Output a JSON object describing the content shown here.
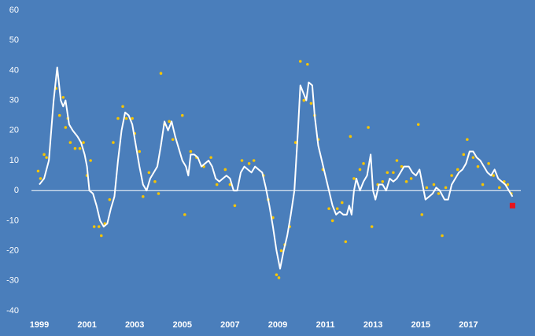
{
  "chart_data": {
    "type": "line",
    "xlim": [
      1998.67,
      2019.2
    ],
    "xticks": [
      1999,
      2001,
      2003,
      2005,
      2007,
      2009,
      2011,
      2013,
      2015,
      2017
    ],
    "ylim": [
      -40,
      60
    ],
    "yticks": [
      -40,
      -30,
      -20,
      -10,
      0,
      10,
      20,
      30,
      40,
      50,
      60
    ],
    "grid": false,
    "zero_line": true,
    "background": "#4a7ebb",
    "series": [
      {
        "type": "line",
        "color": "#ffffff",
        "x": [
          1999.0,
          1999.2,
          1999.4,
          1999.6,
          1999.75,
          1999.9,
          2000.0,
          2000.1,
          2000.25,
          2000.4,
          2000.6,
          2000.75,
          2000.9,
          2001.0,
          2001.1,
          2001.25,
          2001.4,
          2001.55,
          2001.7,
          2001.85,
          2002.0,
          2002.15,
          2002.3,
          2002.45,
          2002.6,
          2002.75,
          2002.9,
          2003.05,
          2003.2,
          2003.35,
          2003.5,
          2003.65,
          2003.8,
          2003.95,
          2004.1,
          2004.25,
          2004.4,
          2004.55,
          2004.7,
          2004.85,
          2005.0,
          2005.15,
          2005.25,
          2005.35,
          2005.5,
          2005.65,
          2005.8,
          2005.95,
          2006.1,
          2006.25,
          2006.4,
          2006.55,
          2006.7,
          2006.85,
          2007.0,
          2007.15,
          2007.3,
          2007.45,
          2007.6,
          2007.75,
          2007.9,
          2008.05,
          2008.2,
          2008.35,
          2008.5,
          2008.65,
          2008.8,
          2008.95,
          2009.1,
          2009.25,
          2009.4,
          2009.55,
          2009.7,
          2009.85,
          2009.95,
          2010.05,
          2010.2,
          2010.3,
          2010.45,
          2010.55,
          2010.7,
          2010.85,
          2011.0,
          2011.15,
          2011.3,
          2011.45,
          2011.6,
          2011.75,
          2011.9,
          2012.0,
          2012.1,
          2012.2,
          2012.3,
          2012.45,
          2012.6,
          2012.75,
          2012.9,
          2013.0,
          2013.1,
          2013.25,
          2013.4,
          2013.55,
          2013.7,
          2013.85,
          2014.0,
          2014.15,
          2014.3,
          2014.5,
          2014.65,
          2014.8,
          2014.95,
          2015.05,
          2015.2,
          2015.35,
          2015.5,
          2015.65,
          2015.8,
          2016.0,
          2016.15,
          2016.3,
          2016.45,
          2016.6,
          2016.75,
          2016.9,
          2017.05,
          2017.2,
          2017.35,
          2017.5,
          2017.65,
          2017.8,
          2017.95,
          2018.1,
          2018.25,
          2018.4,
          2018.55,
          2018.7,
          2018.85
        ],
        "values": [
          2,
          4,
          10,
          30,
          41,
          30,
          28,
          30,
          22,
          20,
          18,
          16,
          12,
          8,
          0,
          -1,
          -5,
          -10,
          -12,
          -11,
          -6,
          -2,
          10,
          20,
          26,
          25,
          22,
          15,
          8,
          2,
          0,
          4,
          6,
          8,
          15,
          23,
          20,
          23,
          18,
          14,
          10,
          8,
          5,
          12,
          12,
          11,
          8,
          9,
          10,
          8,
          4,
          3,
          4,
          5,
          4,
          0,
          0,
          6,
          8,
          7,
          6,
          8,
          7,
          6,
          1,
          -5,
          -12,
          -20,
          -26,
          -20,
          -15,
          -8,
          0,
          20,
          35,
          33,
          30,
          36,
          35,
          25,
          15,
          10,
          5,
          0,
          -5,
          -8,
          -7,
          -8,
          -8,
          -5,
          -8,
          0,
          4,
          0,
          3,
          5,
          12,
          0,
          -3,
          2,
          2,
          0,
          4,
          3,
          4,
          6,
          8,
          8,
          6,
          5,
          7,
          3,
          -3,
          -2,
          -1,
          1,
          0,
          -3,
          -3,
          2,
          4,
          6,
          7,
          9,
          13,
          13,
          11,
          10,
          8,
          6,
          5,
          7,
          4,
          3,
          2,
          0,
          -2
        ]
      },
      {
        "type": "scatter",
        "color": "#f5c400",
        "x": [
          1998.95,
          1999.05,
          1999.2,
          1999.3,
          1999.7,
          1999.85,
          2000.0,
          2000.1,
          2000.2,
          2000.3,
          2000.5,
          2000.7,
          2000.85,
          2001.0,
          2001.15,
          2001.3,
          2001.5,
          2001.6,
          2001.75,
          2001.95,
          2002.1,
          2002.3,
          2002.5,
          2002.65,
          2002.9,
          2003.0,
          2003.2,
          2003.35,
          2003.6,
          2003.85,
          2004.0,
          2004.1,
          2004.25,
          2004.45,
          2004.6,
          2005.0,
          2005.1,
          2005.35,
          2005.6,
          2005.9,
          2006.2,
          2006.45,
          2006.8,
          2007.0,
          2007.2,
          2007.5,
          2007.8,
          2008.0,
          2008.4,
          2008.6,
          2008.8,
          2008.95,
          2009.05,
          2009.15,
          2009.3,
          2009.5,
          2009.75,
          2009.95,
          2010.1,
          2010.25,
          2010.4,
          2010.55,
          2010.7,
          2010.9,
          2011.15,
          2011.3,
          2011.5,
          2011.7,
          2011.85,
          2012.05,
          2012.2,
          2012.45,
          2012.6,
          2012.8,
          2012.95,
          2013.2,
          2013.4,
          2013.6,
          2013.85,
          2014.0,
          2014.2,
          2014.4,
          2014.6,
          2014.9,
          2015.05,
          2015.25,
          2015.55,
          2015.75,
          2015.9,
          2016.05,
          2016.3,
          2016.55,
          2016.8,
          2016.95,
          2017.2,
          2017.4,
          2017.6,
          2017.85,
          2018.05,
          2018.3,
          2018.5,
          2018.65,
          2018.8
        ],
        "values": [
          6.5,
          4,
          12,
          11,
          34,
          25,
          31,
          21,
          24,
          16,
          14,
          14,
          16,
          5,
          10,
          -12,
          -12,
          -15,
          -11,
          -3,
          16,
          24,
          28,
          24,
          24,
          19,
          13,
          -2,
          6,
          3,
          -1,
          39,
          22,
          23,
          17,
          25,
          -8,
          13,
          11,
          8,
          11,
          2,
          7,
          2,
          -5,
          10,
          9,
          10,
          5,
          -3,
          -9,
          -28,
          -29,
          -20,
          -18,
          -12,
          16,
          43,
          30,
          42,
          29,
          25,
          17,
          7,
          -6,
          -10,
          -6,
          -4,
          -17,
          18,
          4,
          7,
          9,
          21,
          -12,
          2,
          3,
          6,
          6,
          10,
          8,
          3,
          4,
          22,
          -8,
          1,
          2,
          -1,
          -15,
          1,
          5,
          7,
          12,
          17,
          11,
          8,
          2,
          9,
          5,
          1,
          3,
          2,
          -1
        ]
      },
      {
        "type": "marker",
        "color": "#e8141c",
        "x": [
          2018.85
        ],
        "values": [
          -5
        ]
      }
    ]
  }
}
